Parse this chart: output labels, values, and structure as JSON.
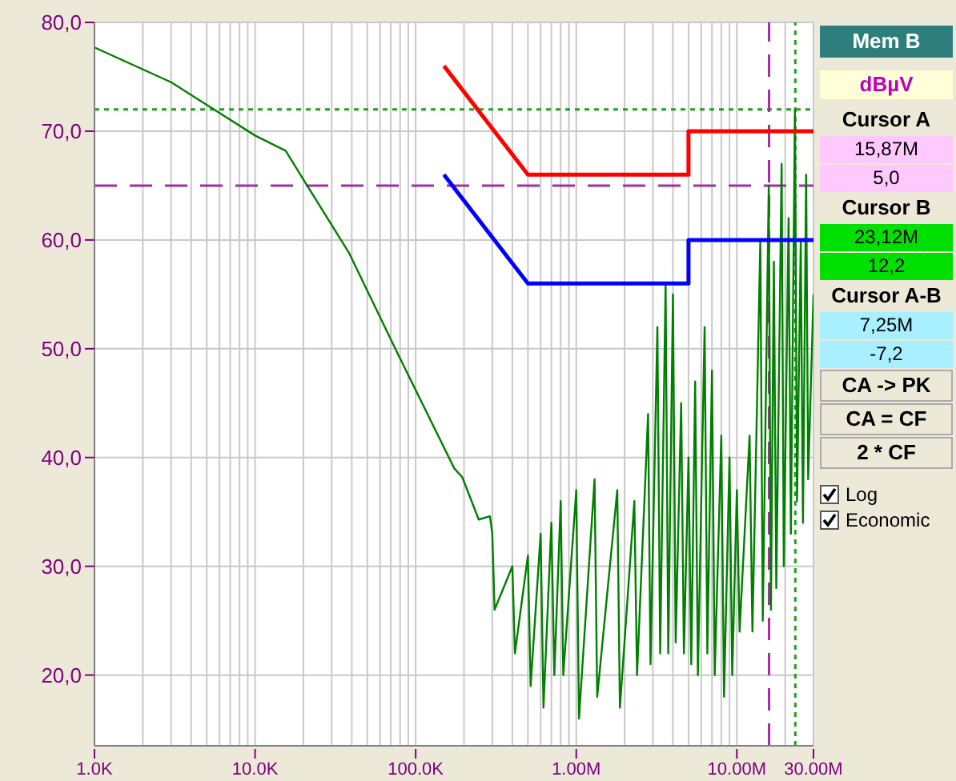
{
  "chart_data": {
    "type": "line",
    "annotations": [
      "Mem B",
      "dBµV",
      "Cursor A",
      "15,87M",
      "5,0",
      "Cursor B",
      "23,12M",
      "12,2",
      "Cursor A-B",
      "7,25M",
      "-7,2",
      "CA -> PK",
      "CA = CF",
      "2 * CF",
      "Log",
      "Economic"
    ],
    "log": "x",
    "grid": true,
    "legend": false,
    "marker": "none",
    "line_style": "solid",
    "xlim": [
      1000,
      30000000
    ],
    "ylim": [
      13.5,
      80
    ],
    "xticks": [
      {
        "value": 1000,
        "label": "1.0K"
      },
      {
        "value": 2000,
        "label": null
      },
      {
        "value": 3000,
        "label": null
      },
      {
        "value": 4000,
        "label": null
      },
      {
        "value": 5000,
        "label": null
      },
      {
        "value": 6000,
        "label": null
      },
      {
        "value": 7000,
        "label": null
      },
      {
        "value": 8000,
        "label": null
      },
      {
        "value": 9000,
        "label": null
      },
      {
        "value": 10000,
        "label": "10.0K"
      },
      {
        "value": 20000,
        "label": null
      },
      {
        "value": 30000,
        "label": null
      },
      {
        "value": 40000,
        "label": null
      },
      {
        "value": 50000,
        "label": null
      },
      {
        "value": 60000,
        "label": null
      },
      {
        "value": 70000,
        "label": null
      },
      {
        "value": 80000,
        "label": null
      },
      {
        "value": 90000,
        "label": null
      },
      {
        "value": 100000,
        "label": "100.0K"
      },
      {
        "value": 200000,
        "label": null
      },
      {
        "value": 300000,
        "label": null
      },
      {
        "value": 400000,
        "label": null
      },
      {
        "value": 500000,
        "label": null
      },
      {
        "value": 600000,
        "label": null
      },
      {
        "value": 700000,
        "label": null
      },
      {
        "value": 800000,
        "label": null
      },
      {
        "value": 900000,
        "label": null
      },
      {
        "value": 1000000,
        "label": "1.00M"
      },
      {
        "value": 2000000,
        "label": null
      },
      {
        "value": 3000000,
        "label": null
      },
      {
        "value": 4000000,
        "label": null
      },
      {
        "value": 5000000,
        "label": null
      },
      {
        "value": 6000000,
        "label": null
      },
      {
        "value": 7000000,
        "label": null
      },
      {
        "value": 8000000,
        "label": null
      },
      {
        "value": 9000000,
        "label": null
      },
      {
        "value": 10000000,
        "label": "10.00M"
      },
      {
        "value": 20000000,
        "label": null
      },
      {
        "value": 30000000,
        "label": "30.00M"
      }
    ],
    "yticks": [
      {
        "value": 20,
        "label": "20,0"
      },
      {
        "value": 30,
        "label": "30,0"
      },
      {
        "value": 40,
        "label": "40,0"
      },
      {
        "value": 50,
        "label": "50,0"
      },
      {
        "value": 60,
        "label": "60,0"
      },
      {
        "value": 70,
        "label": "70,0"
      },
      {
        "value": 80,
        "label": "80,0"
      }
    ],
    "ref_lines": [
      {
        "axis": "y",
        "value": 65,
        "color": "#a030a0",
        "line_style": "dashed"
      },
      {
        "axis": "y",
        "value": 72,
        "color": "#20a020",
        "line_style": "dotted"
      },
      {
        "axis": "x",
        "value": 15870000,
        "color": "#a030a0",
        "line_style": "dashed"
      },
      {
        "axis": "x",
        "value": 23120000,
        "color": "#20a020",
        "line_style": "dotted"
      }
    ],
    "series": [
      {
        "color": "#007f00",
        "x": [
          1000,
          3000,
          10000,
          15500,
          20500,
          38500,
          77000,
          174000,
          195000,
          247000,
          290000,
          300000,
          310000,
          400000,
          415000,
          500000,
          520000,
          600000,
          625000,
          700000,
          730000,
          800000,
          830000,
          1000000,
          1040000,
          1300000,
          1350000,
          1800000,
          1870000,
          2300000,
          2390000,
          2800000,
          2900000,
          3200000,
          3330000,
          3600000,
          3740000,
          4000000,
          4160000,
          4500000,
          4680000,
          5000000,
          5200000,
          5500000,
          5720000,
          6300000,
          6550000,
          7000000,
          7280000,
          8000000,
          8320000,
          9000000,
          9360000,
          10000000,
          10400000,
          12000000,
          12500000,
          14000000,
          14500000,
          15800000,
          16300000,
          17000000,
          17600000,
          19000000,
          19600000,
          21000000,
          21700000,
          23000000,
          23700000,
          25000000,
          25800000,
          27000000,
          27800000,
          30000000
        ],
        "values": [
          77.7,
          74.5,
          69.6,
          68.2,
          65.3,
          58.8,
          49.6,
          39,
          38.2,
          34.3,
          34.6,
          33,
          26,
          30,
          22,
          31,
          19,
          33,
          17,
          34,
          20,
          36,
          20,
          37,
          16,
          38,
          18,
          37,
          17,
          36,
          20,
          44,
          21,
          52,
          22,
          56,
          22,
          55,
          23,
          45,
          22,
          40,
          21,
          47,
          20,
          52,
          22,
          48,
          20,
          42,
          18,
          40,
          20,
          37,
          24,
          42,
          24,
          60,
          25,
          65,
          26,
          58,
          28,
          67,
          30,
          62,
          33,
          72,
          36,
          60,
          34,
          66,
          38,
          55
        ]
      },
      {
        "color": "#ff0000",
        "x": [
          150000,
          500000,
          5000000,
          5000000,
          30000000
        ],
        "values": [
          76,
          66,
          66,
          70,
          70
        ]
      },
      {
        "color": "#0000ff",
        "x": [
          150000,
          500000,
          5000000,
          5000000,
          30000000
        ],
        "values": [
          66,
          56,
          56,
          60,
          60
        ]
      }
    ]
  }
}
